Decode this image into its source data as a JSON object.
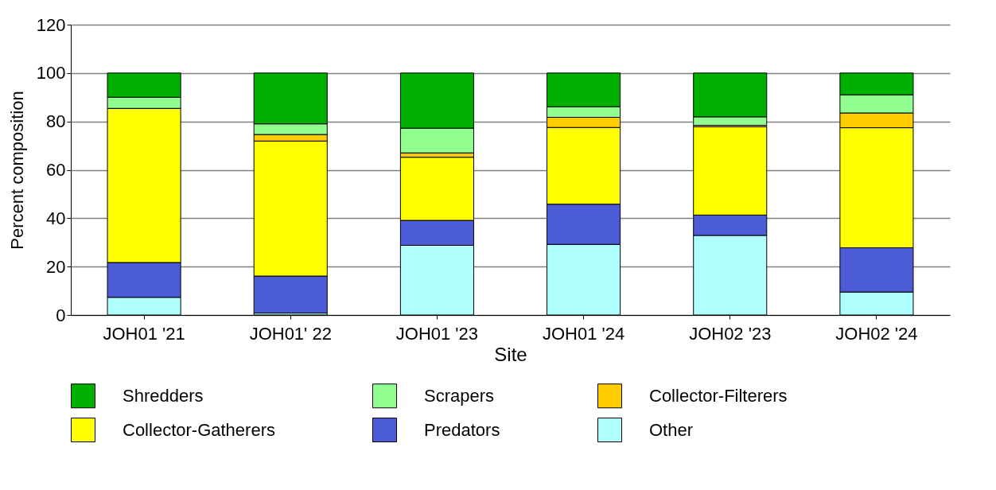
{
  "chart_data": {
    "type": "bar",
    "stacked": true,
    "xlabel": "Site",
    "ylabel": "Percent composition",
    "categories": [
      "JOH01 '21",
      "JOH01' 22",
      "JOH01 '23",
      "JOH01 '24",
      "JOH02 '23",
      "JOH02 '24"
    ],
    "series": [
      {
        "name": "Other",
        "color": "#b0ffff",
        "values": [
          7.3,
          0.8,
          28.8,
          29.2,
          32.9,
          9.5
        ]
      },
      {
        "name": "Predators",
        "color": "#4c5cd6",
        "values": [
          14.4,
          15.3,
          10.3,
          16.6,
          8.4,
          18.3
        ]
      },
      {
        "name": "Collector-Gatherers",
        "color": "#ffff00",
        "values": [
          63.7,
          55.8,
          26.1,
          31.7,
          36.5,
          49.6
        ]
      },
      {
        "name": "Collector-Filterers",
        "color": "#ffcc00",
        "values": [
          0,
          2.7,
          1.8,
          4.2,
          0.6,
          6.1
        ]
      },
      {
        "name": "Scrapers",
        "color": "#90ff90",
        "values": [
          4.6,
          4.4,
          10.2,
          4.4,
          3.5,
          7.5
        ]
      },
      {
        "name": "Shredders",
        "color": "#00b000",
        "values": [
          10.0,
          21.0,
          22.8,
          13.9,
          18.1,
          9.0
        ]
      }
    ],
    "ylim": [
      0,
      120
    ],
    "yticks": [
      0,
      20,
      40,
      60,
      80,
      100,
      120
    ],
    "grid": "y",
    "legend": "bottom"
  }
}
